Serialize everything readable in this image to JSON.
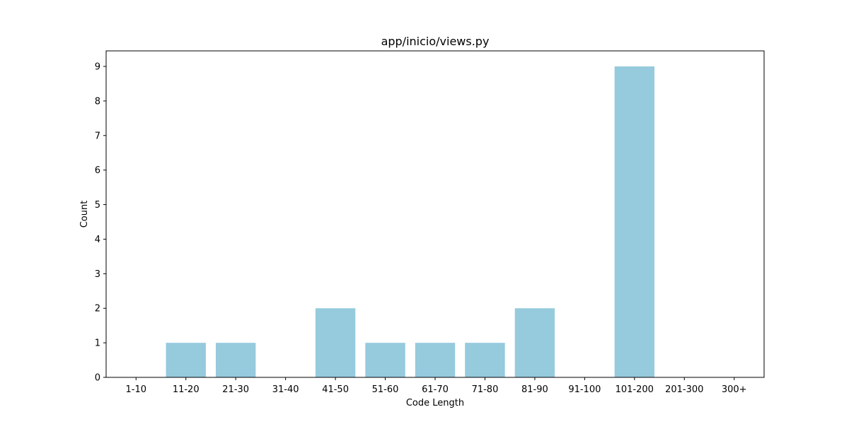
{
  "chart_data": {
    "type": "bar",
    "title": "app/inicio/views.py",
    "xlabel": "Code Length",
    "ylabel": "Count",
    "categories": [
      "1-10",
      "11-20",
      "21-30",
      "31-40",
      "41-50",
      "51-60",
      "61-70",
      "71-80",
      "81-90",
      "91-100",
      "101-200",
      "201-300",
      "300+"
    ],
    "values": [
      0,
      1,
      1,
      0,
      2,
      1,
      1,
      1,
      2,
      0,
      9,
      0,
      0
    ],
    "ylim": [
      0,
      9.45
    ],
    "yticks": [
      "0",
      "1",
      "2",
      "3",
      "4",
      "5",
      "6",
      "7",
      "8",
      "9"
    ],
    "bar_color": "#96cadd",
    "grid": false,
    "legend": "none"
  }
}
